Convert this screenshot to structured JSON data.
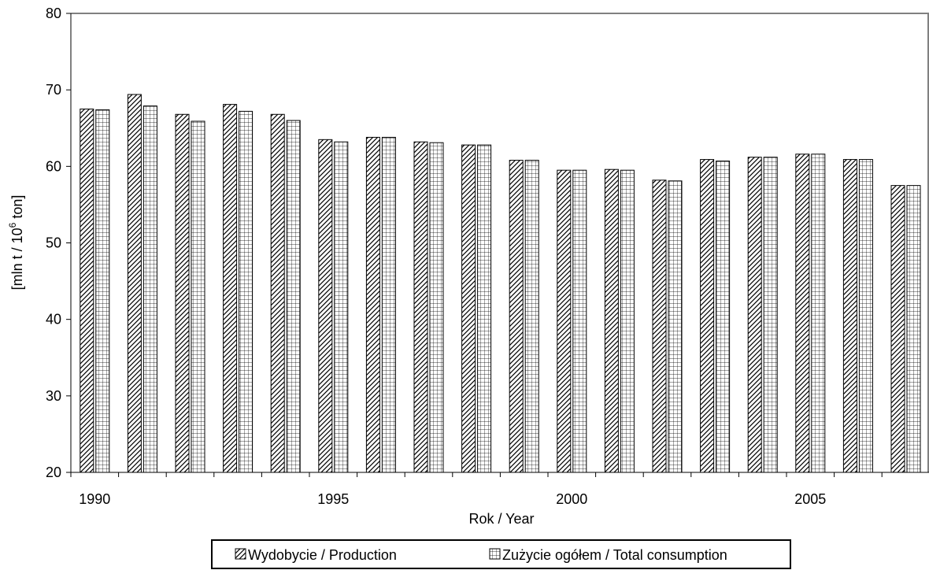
{
  "chart_data": {
    "type": "bar",
    "categories": [
      "1990",
      "1991",
      "1992",
      "1993",
      "1994",
      "1995",
      "1996",
      "1997",
      "1998",
      "1999",
      "2000",
      "2001",
      "2002",
      "2003",
      "2004",
      "2005",
      "2006",
      "2007"
    ],
    "x_tick_labels": [
      "1990",
      "1995",
      "2000",
      "2005"
    ],
    "series": [
      {
        "name": "Wydobycie / Production",
        "pattern": "diagonal-hatch",
        "values": [
          67.5,
          69.4,
          66.8,
          68.1,
          66.8,
          63.5,
          63.8,
          63.2,
          62.8,
          60.8,
          59.5,
          59.6,
          58.2,
          60.9,
          61.2,
          61.6,
          60.9,
          57.5
        ]
      },
      {
        "name": "Zużycie ogółem / Total consumption",
        "pattern": "grid-hatch",
        "values": [
          67.4,
          67.9,
          65.9,
          67.2,
          66.0,
          63.2,
          63.8,
          63.1,
          62.8,
          60.8,
          59.5,
          59.5,
          58.1,
          60.7,
          61.2,
          61.6,
          60.9,
          57.5
        ]
      }
    ],
    "ylabel_main": "[mln t / 10",
    "ylabel_sup": "6",
    "ylabel_tail": " ton]",
    "xlabel": "Rok / Year",
    "ylim": [
      20,
      80
    ],
    "yticks": [
      20,
      30,
      40,
      50,
      60,
      70,
      80
    ],
    "grid": false,
    "legend_position": "bottom-center"
  }
}
